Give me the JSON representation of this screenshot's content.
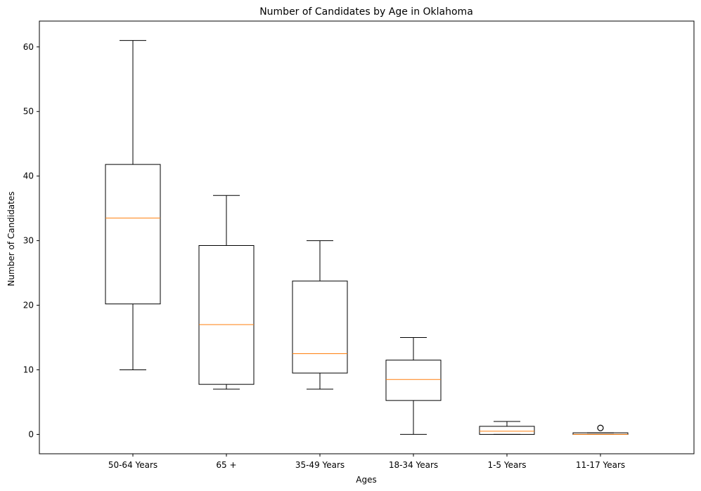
{
  "chart_data": {
    "type": "boxplot",
    "title": "Number of Candidates by Age in Oklahoma",
    "xlabel": "Ages",
    "ylabel": "Number of Candidates",
    "ylim": [
      -3,
      64
    ],
    "yticks": [
      0,
      10,
      20,
      30,
      40,
      50,
      60
    ],
    "grid": false,
    "categories": [
      "50-64 Years",
      "65 +",
      "35-49 Years",
      "18-34 Years",
      "1-5 Years",
      "11-17 Years"
    ],
    "boxes": [
      {
        "category": "50-64 Years",
        "whisker_low": 10,
        "q1": 20.2,
        "median": 33.5,
        "q3": 41.8,
        "whisker_high": 61,
        "outliers": []
      },
      {
        "category": "65 +",
        "whisker_low": 7,
        "q1": 7.75,
        "median": 17,
        "q3": 29.25,
        "whisker_high": 37,
        "outliers": []
      },
      {
        "category": "35-49 Years",
        "whisker_low": 7,
        "q1": 9.5,
        "median": 12.5,
        "q3": 23.75,
        "whisker_high": 30,
        "outliers": []
      },
      {
        "category": "18-34 Years",
        "whisker_low": 0,
        "q1": 5.25,
        "median": 8.5,
        "q3": 11.5,
        "whisker_high": 15,
        "outliers": []
      },
      {
        "category": "1-5 Years",
        "whisker_low": 0,
        "q1": 0,
        "median": 0.5,
        "q3": 1.25,
        "whisker_high": 2,
        "outliers": []
      },
      {
        "category": "11-17 Years",
        "whisker_low": 0,
        "q1": 0,
        "median": 0,
        "q3": 0.25,
        "whisker_high": 0.25,
        "outliers": [
          1
        ]
      }
    ],
    "colors": {
      "box": "#000000",
      "median": "#ff7f0e",
      "outlier_edge": "#000000"
    }
  }
}
